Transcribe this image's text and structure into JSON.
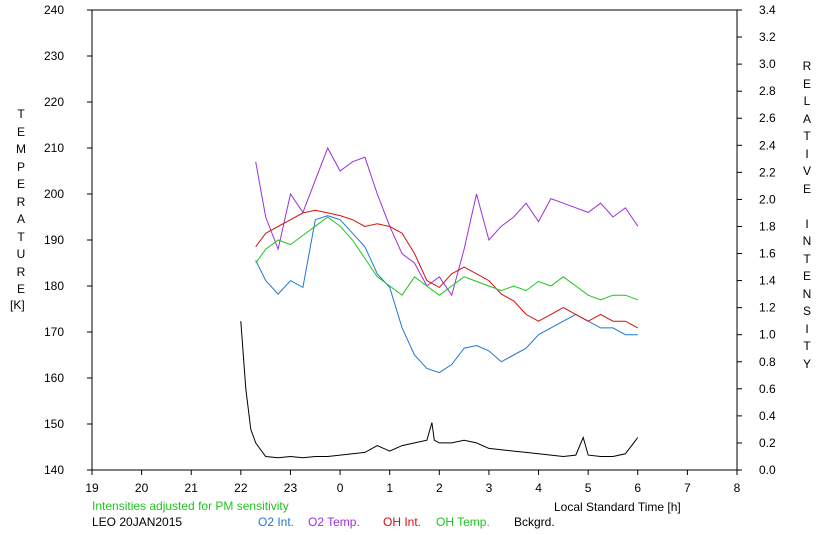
{
  "chart_data": {
    "type": "line",
    "title": "",
    "xlabel": "Local Standard Time [h]",
    "ylabel_left": "TEMPERATURE",
    "ylabel_left_unit": "[K]",
    "ylabel_right": "RELATIVE INTENSITY",
    "x_ticks": [
      "19",
      "20",
      "21",
      "22",
      "23",
      "0",
      "1",
      "2",
      "3",
      "4",
      "5",
      "6",
      "7",
      "8"
    ],
    "y_left_ticks": [
      "140",
      "150",
      "160",
      "170",
      "180",
      "190",
      "200",
      "210",
      "220",
      "230",
      "240"
    ],
    "y_right_ticks": [
      "0.0",
      "0.2",
      "0.4",
      "0.6",
      "0.8",
      "1.0",
      "1.2",
      "1.4",
      "1.6",
      "1.8",
      "2.0",
      "2.2",
      "2.4",
      "2.6",
      "2.8",
      "3.0",
      "3.2",
      "3.4"
    ],
    "xlim": [
      19,
      32
    ],
    "ylim_left": [
      140,
      240
    ],
    "ylim_right": [
      0,
      3.4
    ],
    "grid": false,
    "note": "Intensities adjusted for PM sensitivity",
    "station_date": "LEO 20JAN2015",
    "series": [
      {
        "name": "O2 Int.",
        "axis": "right",
        "color": "#1f77d4",
        "x": [
          22.3,
          22.5,
          22.75,
          23.0,
          23.25,
          23.5,
          23.75,
          24.0,
          24.25,
          24.5,
          24.75,
          25.0,
          25.25,
          25.5,
          25.75,
          26.0,
          26.25,
          26.5,
          26.75,
          27.0,
          27.25,
          27.5,
          27.75,
          28.0,
          28.25,
          28.5,
          28.75,
          29.0,
          29.25,
          29.5,
          29.75,
          30.0
        ],
        "y": [
          1.55,
          1.4,
          1.3,
          1.4,
          1.35,
          1.85,
          1.88,
          1.85,
          1.75,
          1.65,
          1.45,
          1.35,
          1.05,
          0.85,
          0.75,
          0.72,
          0.78,
          0.9,
          0.92,
          0.88,
          0.8,
          0.85,
          0.9,
          1.0,
          1.05,
          1.1,
          1.15,
          1.1,
          1.05,
          1.05,
          1.0,
          1.0
        ]
      },
      {
        "name": "O2 Temp.",
        "axis": "left",
        "color": "#9b30d9",
        "x": [
          22.3,
          22.5,
          22.75,
          23.0,
          23.25,
          23.5,
          23.75,
          24.0,
          24.25,
          24.5,
          24.75,
          25.0,
          25.25,
          25.5,
          25.75,
          26.0,
          26.25,
          26.5,
          26.75,
          27.0,
          27.25,
          27.5,
          27.75,
          28.0,
          28.25,
          28.5,
          28.75,
          29.0,
          29.25,
          29.5,
          29.75,
          30.0
        ],
        "y": [
          207,
          195,
          188,
          200,
          196,
          203,
          210,
          205,
          207,
          208,
          200,
          193,
          187,
          185,
          180,
          182,
          178,
          188,
          200,
          190,
          193,
          195,
          198,
          194,
          199,
          198,
          197,
          196,
          198,
          195,
          197,
          193
        ]
      },
      {
        "name": "OH Int.",
        "axis": "right",
        "color": "#d41010",
        "x": [
          22.3,
          22.5,
          22.75,
          23.0,
          23.25,
          23.5,
          23.75,
          24.0,
          24.25,
          24.5,
          24.75,
          25.0,
          25.25,
          25.5,
          25.75,
          26.0,
          26.25,
          26.5,
          26.75,
          27.0,
          27.25,
          27.5,
          27.75,
          28.0,
          28.25,
          28.5,
          28.75,
          29.0,
          29.25,
          29.5,
          29.75,
          30.0
        ],
        "y": [
          1.65,
          1.75,
          1.8,
          1.85,
          1.9,
          1.92,
          1.9,
          1.88,
          1.85,
          1.8,
          1.82,
          1.8,
          1.75,
          1.6,
          1.4,
          1.35,
          1.45,
          1.5,
          1.45,
          1.4,
          1.3,
          1.25,
          1.15,
          1.1,
          1.15,
          1.2,
          1.15,
          1.1,
          1.15,
          1.1,
          1.1,
          1.05
        ]
      },
      {
        "name": "OH Temp.",
        "axis": "left",
        "color": "#1fc41f",
        "x": [
          22.3,
          22.5,
          22.75,
          23.0,
          23.25,
          23.5,
          23.75,
          24.0,
          24.25,
          24.5,
          24.75,
          25.0,
          25.25,
          25.5,
          25.75,
          26.0,
          26.25,
          26.5,
          26.75,
          27.0,
          27.25,
          27.5,
          27.75,
          28.0,
          28.25,
          28.5,
          28.75,
          29.0,
          29.25,
          29.5,
          29.75,
          30.0
        ],
        "y": [
          185,
          188,
          190,
          189,
          191,
          193,
          195,
          193,
          190,
          186,
          182,
          180,
          178,
          182,
          180,
          178,
          180,
          182,
          181,
          180,
          179,
          180,
          179,
          181,
          180,
          182,
          180,
          178,
          177,
          178,
          178,
          177
        ]
      },
      {
        "name": "Bckgrd.",
        "axis": "right",
        "color": "#000000",
        "x": [
          22.0,
          22.1,
          22.2,
          22.3,
          22.5,
          22.75,
          23.0,
          23.25,
          23.5,
          23.75,
          24.0,
          24.25,
          24.5,
          24.75,
          25.0,
          25.25,
          25.5,
          25.75,
          25.85,
          25.9,
          26.0,
          26.25,
          26.5,
          26.75,
          27.0,
          27.25,
          27.5,
          27.75,
          28.0,
          28.25,
          28.5,
          28.75,
          28.9,
          29.0,
          29.25,
          29.5,
          29.75,
          30.0
        ],
        "y": [
          1.1,
          0.6,
          0.3,
          0.2,
          0.1,
          0.09,
          0.1,
          0.09,
          0.1,
          0.1,
          0.11,
          0.12,
          0.13,
          0.18,
          0.14,
          0.18,
          0.2,
          0.22,
          0.35,
          0.22,
          0.2,
          0.2,
          0.22,
          0.2,
          0.16,
          0.15,
          0.14,
          0.13,
          0.12,
          0.11,
          0.1,
          0.11,
          0.24,
          0.11,
          0.1,
          0.1,
          0.12,
          0.24
        ]
      }
    ]
  }
}
